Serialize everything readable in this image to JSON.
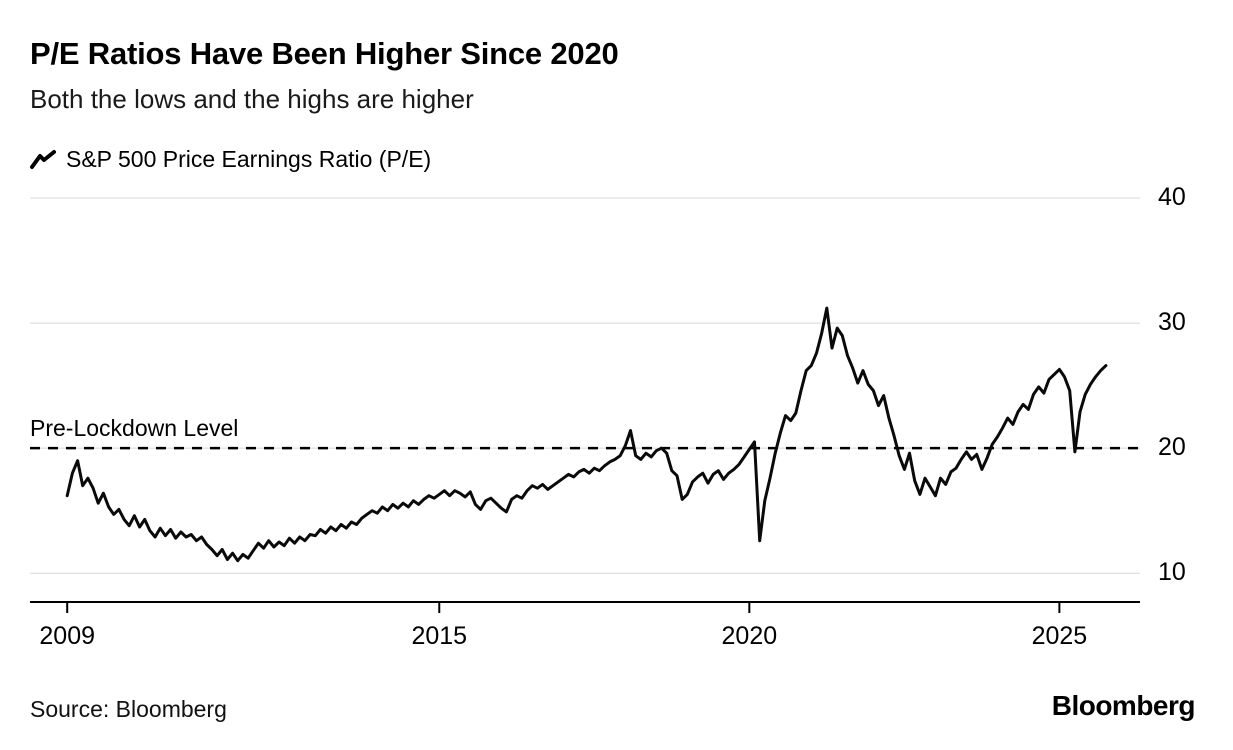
{
  "header": {
    "title": "P/E Ratios Have Been Higher Since 2020",
    "subtitle": "Both the lows and the highs are higher"
  },
  "footer": {
    "source": "Source: Bloomberg",
    "brand": "Bloomberg"
  },
  "chart_data": {
    "type": "line",
    "title": "P/E Ratios Have Been Higher Since 2020",
    "subtitle": "Both the lows and the highs are higher",
    "xlabel": "",
    "ylabel": "",
    "xlim": [
      2008.4,
      2026.3
    ],
    "ylim": [
      7.7,
      40
    ],
    "grid": "horizontal",
    "legend_position": "top-left",
    "line_color": "#0a0a0a",
    "grid_color": "#d8d8d8",
    "axis_color": "#000000",
    "yticks": [
      {
        "v": 10,
        "label": "10"
      },
      {
        "v": 20,
        "label": "20"
      },
      {
        "v": 30,
        "label": "30"
      },
      {
        "v": 40,
        "label": "40"
      }
    ],
    "xticks": [
      {
        "v": 2009,
        "label": "2009"
      },
      {
        "v": 2015,
        "label": "2015"
      },
      {
        "v": 2020,
        "label": "2020"
      },
      {
        "v": 2025,
        "label": "2025"
      }
    ],
    "reference_line": {
      "label": "Pre-Lockdown Level",
      "y": 20,
      "style": "dashed",
      "color": "#000000"
    },
    "series": [
      {
        "name": "S&P 500 Price Earnings Ratio (P/E)",
        "color": "#0a0a0a",
        "points": [
          [
            2009.0,
            16.2
          ],
          [
            2009.083,
            18.0
          ],
          [
            2009.167,
            19.0
          ],
          [
            2009.25,
            17.0
          ],
          [
            2009.333,
            17.6
          ],
          [
            2009.417,
            16.8
          ],
          [
            2009.5,
            15.6
          ],
          [
            2009.583,
            16.4
          ],
          [
            2009.667,
            15.3
          ],
          [
            2009.75,
            14.7
          ],
          [
            2009.833,
            15.1
          ],
          [
            2009.917,
            14.3
          ],
          [
            2010.0,
            13.8
          ],
          [
            2010.083,
            14.6
          ],
          [
            2010.167,
            13.7
          ],
          [
            2010.25,
            14.3
          ],
          [
            2010.333,
            13.4
          ],
          [
            2010.417,
            12.9
          ],
          [
            2010.5,
            13.6
          ],
          [
            2010.583,
            13.0
          ],
          [
            2010.667,
            13.5
          ],
          [
            2010.75,
            12.8
          ],
          [
            2010.833,
            13.3
          ],
          [
            2010.917,
            12.9
          ],
          [
            2011.0,
            13.1
          ],
          [
            2011.083,
            12.6
          ],
          [
            2011.167,
            12.9
          ],
          [
            2011.25,
            12.3
          ],
          [
            2011.333,
            11.9
          ],
          [
            2011.417,
            11.4
          ],
          [
            2011.5,
            11.9
          ],
          [
            2011.583,
            11.1
          ],
          [
            2011.667,
            11.6
          ],
          [
            2011.75,
            11.0
          ],
          [
            2011.833,
            11.5
          ],
          [
            2011.917,
            11.2
          ],
          [
            2012.0,
            11.8
          ],
          [
            2012.083,
            12.4
          ],
          [
            2012.167,
            12.0
          ],
          [
            2012.25,
            12.6
          ],
          [
            2012.333,
            12.1
          ],
          [
            2012.417,
            12.5
          ],
          [
            2012.5,
            12.2
          ],
          [
            2012.583,
            12.8
          ],
          [
            2012.667,
            12.4
          ],
          [
            2012.75,
            12.9
          ],
          [
            2012.833,
            12.6
          ],
          [
            2012.917,
            13.1
          ],
          [
            2013.0,
            13.0
          ],
          [
            2013.083,
            13.5
          ],
          [
            2013.167,
            13.2
          ],
          [
            2013.25,
            13.7
          ],
          [
            2013.333,
            13.4
          ],
          [
            2013.417,
            13.9
          ],
          [
            2013.5,
            13.6
          ],
          [
            2013.583,
            14.1
          ],
          [
            2013.667,
            13.9
          ],
          [
            2013.75,
            14.4
          ],
          [
            2013.833,
            14.7
          ],
          [
            2013.917,
            15.0
          ],
          [
            2014.0,
            14.8
          ],
          [
            2014.083,
            15.3
          ],
          [
            2014.167,
            15.0
          ],
          [
            2014.25,
            15.5
          ],
          [
            2014.333,
            15.2
          ],
          [
            2014.417,
            15.6
          ],
          [
            2014.5,
            15.3
          ],
          [
            2014.583,
            15.8
          ],
          [
            2014.667,
            15.5
          ],
          [
            2014.75,
            15.9
          ],
          [
            2014.833,
            16.2
          ],
          [
            2014.917,
            16.0
          ],
          [
            2015.0,
            16.3
          ],
          [
            2015.083,
            16.6
          ],
          [
            2015.167,
            16.2
          ],
          [
            2015.25,
            16.6
          ],
          [
            2015.333,
            16.4
          ],
          [
            2015.417,
            16.1
          ],
          [
            2015.5,
            16.5
          ],
          [
            2015.583,
            15.5
          ],
          [
            2015.667,
            15.1
          ],
          [
            2015.75,
            15.8
          ],
          [
            2015.833,
            16.0
          ],
          [
            2015.917,
            15.6
          ],
          [
            2016.0,
            15.2
          ],
          [
            2016.083,
            14.9
          ],
          [
            2016.167,
            15.9
          ],
          [
            2016.25,
            16.2
          ],
          [
            2016.333,
            16.0
          ],
          [
            2016.417,
            16.6
          ],
          [
            2016.5,
            17.0
          ],
          [
            2016.583,
            16.8
          ],
          [
            2016.667,
            17.1
          ],
          [
            2016.75,
            16.7
          ],
          [
            2016.833,
            17.0
          ],
          [
            2016.917,
            17.3
          ],
          [
            2017.0,
            17.6
          ],
          [
            2017.083,
            17.9
          ],
          [
            2017.167,
            17.7
          ],
          [
            2017.25,
            18.1
          ],
          [
            2017.333,
            18.3
          ],
          [
            2017.417,
            18.0
          ],
          [
            2017.5,
            18.4
          ],
          [
            2017.583,
            18.2
          ],
          [
            2017.667,
            18.6
          ],
          [
            2017.75,
            18.9
          ],
          [
            2017.833,
            19.1
          ],
          [
            2017.917,
            19.4
          ],
          [
            2018.0,
            20.2
          ],
          [
            2018.083,
            21.4
          ],
          [
            2018.167,
            19.4
          ],
          [
            2018.25,
            19.1
          ],
          [
            2018.333,
            19.6
          ],
          [
            2018.417,
            19.3
          ],
          [
            2018.5,
            19.8
          ],
          [
            2018.583,
            20.0
          ],
          [
            2018.667,
            19.6
          ],
          [
            2018.75,
            18.2
          ],
          [
            2018.833,
            17.8
          ],
          [
            2018.917,
            15.9
          ],
          [
            2019.0,
            16.3
          ],
          [
            2019.083,
            17.3
          ],
          [
            2019.167,
            17.7
          ],
          [
            2019.25,
            18.0
          ],
          [
            2019.333,
            17.2
          ],
          [
            2019.417,
            17.9
          ],
          [
            2019.5,
            18.2
          ],
          [
            2019.583,
            17.5
          ],
          [
            2019.667,
            18.0
          ],
          [
            2019.75,
            18.3
          ],
          [
            2019.833,
            18.7
          ],
          [
            2019.917,
            19.3
          ],
          [
            2020.0,
            19.9
          ],
          [
            2020.083,
            20.5
          ],
          [
            2020.167,
            12.6
          ],
          [
            2020.25,
            15.8
          ],
          [
            2020.333,
            17.6
          ],
          [
            2020.417,
            19.6
          ],
          [
            2020.5,
            21.2
          ],
          [
            2020.583,
            22.6
          ],
          [
            2020.667,
            22.2
          ],
          [
            2020.75,
            22.8
          ],
          [
            2020.833,
            24.6
          ],
          [
            2020.917,
            26.2
          ],
          [
            2021.0,
            26.6
          ],
          [
            2021.083,
            27.6
          ],
          [
            2021.167,
            29.2
          ],
          [
            2021.25,
            31.2
          ],
          [
            2021.333,
            28.0
          ],
          [
            2021.417,
            29.6
          ],
          [
            2021.5,
            29.0
          ],
          [
            2021.583,
            27.4
          ],
          [
            2021.667,
            26.4
          ],
          [
            2021.75,
            25.2
          ],
          [
            2021.833,
            26.2
          ],
          [
            2021.917,
            25.1
          ],
          [
            2022.0,
            24.6
          ],
          [
            2022.083,
            23.4
          ],
          [
            2022.167,
            24.2
          ],
          [
            2022.25,
            22.4
          ],
          [
            2022.333,
            21.0
          ],
          [
            2022.417,
            19.4
          ],
          [
            2022.5,
            18.3
          ],
          [
            2022.583,
            19.6
          ],
          [
            2022.667,
            17.4
          ],
          [
            2022.75,
            16.3
          ],
          [
            2022.833,
            17.6
          ],
          [
            2022.917,
            16.9
          ],
          [
            2023.0,
            16.2
          ],
          [
            2023.083,
            17.6
          ],
          [
            2023.167,
            17.1
          ],
          [
            2023.25,
            18.1
          ],
          [
            2023.333,
            18.4
          ],
          [
            2023.417,
            19.1
          ],
          [
            2023.5,
            19.7
          ],
          [
            2023.583,
            19.1
          ],
          [
            2023.667,
            19.5
          ],
          [
            2023.75,
            18.3
          ],
          [
            2023.833,
            19.2
          ],
          [
            2023.917,
            20.3
          ],
          [
            2024.0,
            20.9
          ],
          [
            2024.083,
            21.6
          ],
          [
            2024.167,
            22.4
          ],
          [
            2024.25,
            21.9
          ],
          [
            2024.333,
            22.9
          ],
          [
            2024.417,
            23.5
          ],
          [
            2024.5,
            23.1
          ],
          [
            2024.583,
            24.3
          ],
          [
            2024.667,
            24.9
          ],
          [
            2024.75,
            24.4
          ],
          [
            2024.833,
            25.5
          ],
          [
            2024.917,
            25.9
          ],
          [
            2025.0,
            26.3
          ],
          [
            2025.083,
            25.7
          ],
          [
            2025.167,
            24.6
          ],
          [
            2025.25,
            19.7
          ],
          [
            2025.333,
            22.9
          ],
          [
            2025.417,
            24.3
          ],
          [
            2025.5,
            25.1
          ],
          [
            2025.583,
            25.7
          ],
          [
            2025.667,
            26.2
          ],
          [
            2025.75,
            26.6
          ]
        ]
      }
    ]
  }
}
